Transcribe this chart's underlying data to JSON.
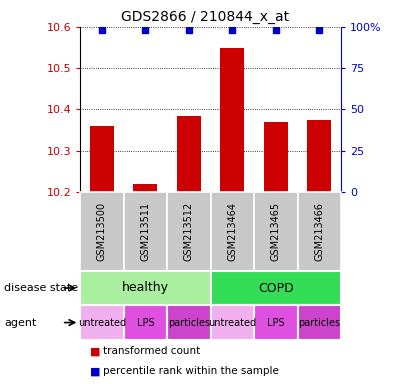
{
  "title": "GDS2866 / 210844_x_at",
  "samples": [
    "GSM213500",
    "GSM213511",
    "GSM213512",
    "GSM213464",
    "GSM213465",
    "GSM213466"
  ],
  "bar_values": [
    10.36,
    10.22,
    10.385,
    10.55,
    10.37,
    10.375
  ],
  "percentile_values": [
    100,
    100,
    100,
    100,
    100,
    100
  ],
  "bar_color": "#cc0000",
  "dot_color": "#0000cc",
  "ylim": [
    10.2,
    10.6
  ],
  "y_ticks": [
    10.2,
    10.3,
    10.4,
    10.5,
    10.6
  ],
  "y2_ticks": [
    0,
    25,
    50,
    75,
    100
  ],
  "disease_state_groups": [
    {
      "label": "healthy",
      "start": 0,
      "end": 3,
      "color": "#aaeea0"
    },
    {
      "label": "COPD",
      "start": 3,
      "end": 6,
      "color": "#33dd55"
    }
  ],
  "agent_groups": [
    {
      "label": "untreated",
      "start": 0,
      "end": 1,
      "color": "#f0b0f0"
    },
    {
      "label": "LPS",
      "start": 1,
      "end": 2,
      "color": "#e050e0"
    },
    {
      "label": "particles",
      "start": 2,
      "end": 3,
      "color": "#cc44cc"
    },
    {
      "label": "untreated",
      "start": 3,
      "end": 4,
      "color": "#f0b0f0"
    },
    {
      "label": "LPS",
      "start": 4,
      "end": 5,
      "color": "#e050e0"
    },
    {
      "label": "particles",
      "start": 5,
      "end": 6,
      "color": "#cc44cc"
    }
  ],
  "agent_colors": {
    "untreated": "#f0b0f0",
    "LPS": "#e050e0",
    "particles": "#cc44cc"
  },
  "sample_box_color": "#c8c8c8",
  "legend_items": [
    {
      "label": "transformed count",
      "color": "#cc0000"
    },
    {
      "label": "percentile rank within the sample",
      "color": "#0000cc"
    }
  ]
}
